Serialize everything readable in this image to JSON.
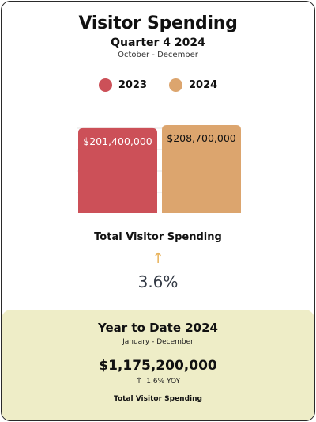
{
  "header": {
    "title": "Visitor Spending",
    "subtitle": "Quarter 4 2024",
    "date_range": "October - December"
  },
  "legend": [
    {
      "label": "2023",
      "color": "#cc5058"
    },
    {
      "label": "2024",
      "color": "#dca56e"
    }
  ],
  "chart_data": {
    "type": "bar",
    "categories": [
      "2023",
      "2024"
    ],
    "values": [
      201400000,
      208700000
    ],
    "value_labels": [
      "$201,400,000",
      "$208,700,000"
    ],
    "colors": [
      "#cc5058",
      "#dca56e"
    ],
    "title": "",
    "xlabel": "",
    "ylabel": "",
    "grid": true
  },
  "summary": {
    "label": "Total Visitor Spending",
    "arrow_icon": "arrow-up-icon",
    "arrow_color": "#e8b25a",
    "change_text": "3.6%"
  },
  "ytd": {
    "title": "Year to Date 2024",
    "date_range": "January - December",
    "amount": "$1,175,200,000",
    "arrow_icon": "arrow-up-icon",
    "change_text": "1.6% YOY",
    "label": "Total Visitor Spending",
    "background": "#eeedc7"
  }
}
